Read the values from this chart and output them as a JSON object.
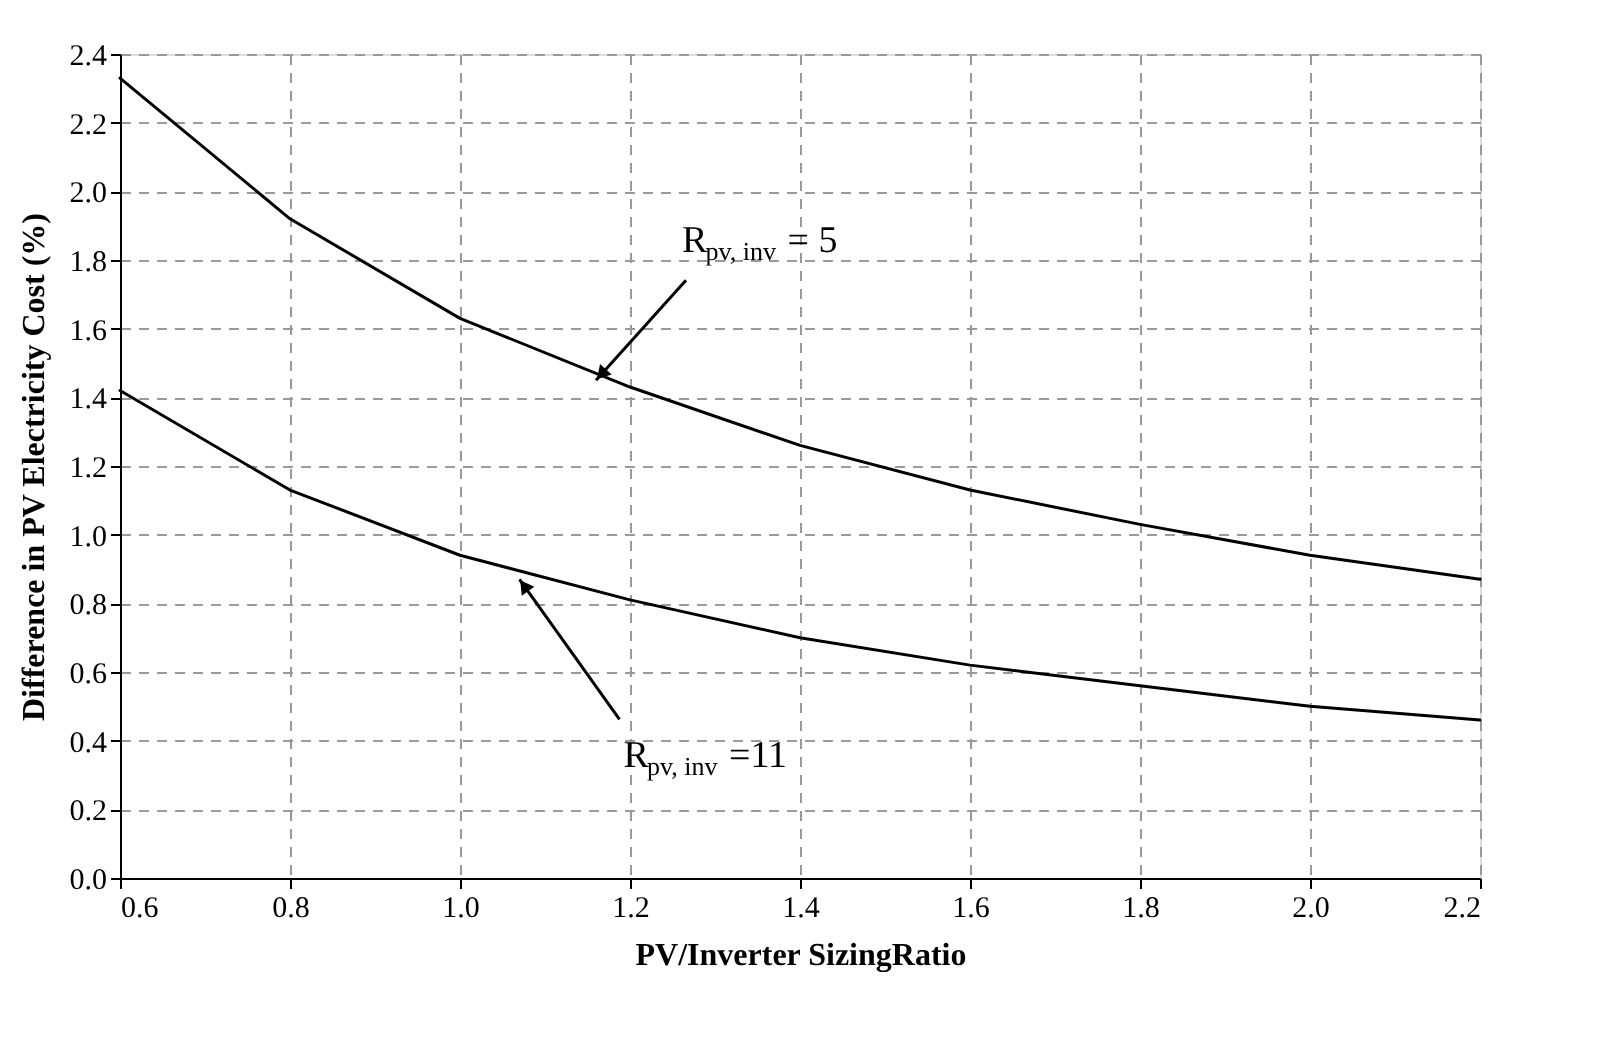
{
  "chart_data": {
    "type": "line",
    "xlabel": "PV/Inverter SizingRatio",
    "ylabel": "Difference in PV Electricity Cost (%)",
    "x": [
      0.6,
      0.8,
      1.0,
      1.2,
      1.4,
      1.6,
      1.8,
      2.0,
      2.2
    ],
    "series": [
      {
        "color": "#000000",
        "values": [
          2.33,
          1.92,
          1.63,
          1.43,
          1.26,
          1.13,
          1.03,
          0.94,
          0.87
        ]
      },
      {
        "color": "#000000",
        "values": [
          1.42,
          1.13,
          0.94,
          0.81,
          0.7,
          0.62,
          0.56,
          0.5,
          0.46
        ]
      }
    ],
    "annotations": [
      {
        "text": "R$_{pv, inv}$ = 5",
        "x": 1.16,
        "y": 1.45
      },
      {
        "text": "R$_{pv, inv}$=11",
        "x": 1.07,
        "y": 0.87
      }
    ],
    "xlim": [
      0.6,
      2.2
    ],
    "xticks": [
      0.6,
      0.8,
      {
        "value": 1,
        "label": "1.0"
      },
      1.2,
      1.4,
      1.6,
      1.8,
      {
        "value": 2,
        "label": "2.0"
      },
      2.2
    ],
    "ylim": [
      0.0,
      2.4
    ],
    "yticks": [
      {
        "value": 0,
        "label": "0.0"
      },
      0.2,
      0.4,
      0.6,
      0.8,
      {
        "value": 1,
        "label": "1.0"
      },
      1.2,
      1.4,
      1.6,
      1.8,
      {
        "value": 2,
        "label": "2.0"
      },
      2.2,
      2.4
    ],
    "grid": true,
    "marker": "none",
    "line_style": "solid"
  }
}
